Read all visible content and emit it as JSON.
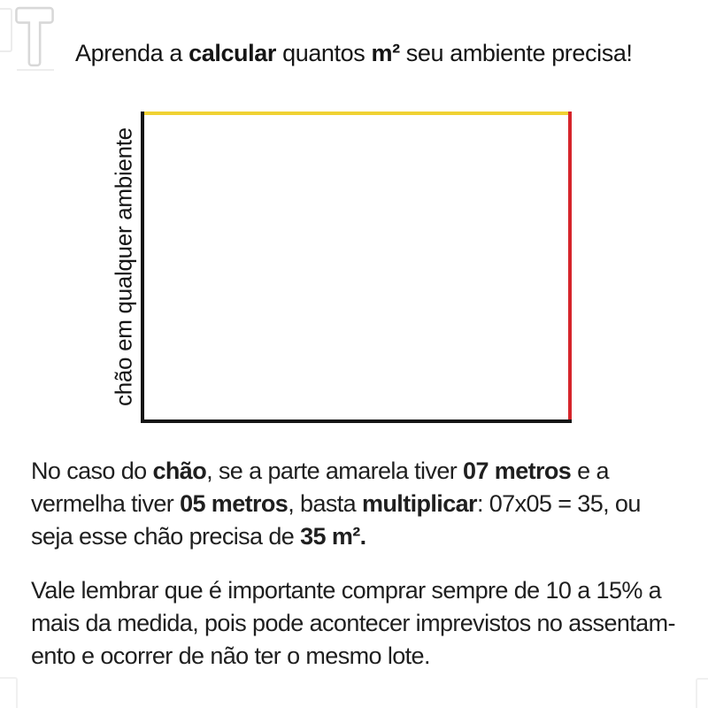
{
  "logo": {
    "letter": "T"
  },
  "header": {
    "title_segments": [
      {
        "text": "Aprenda a "
      },
      {
        "text": "calcular",
        "bold": true
      },
      {
        "text": " quantos "
      },
      {
        "text": "m²",
        "bold": true
      },
      {
        "text": " seu ambiente precisa!"
      }
    ]
  },
  "diagram": {
    "side_label": "chão em qualquer ambiente",
    "edge_colors": {
      "top": "#F0D233",
      "right": "#D6252B",
      "bottom": "#151515",
      "left": "#151515"
    }
  },
  "body": {
    "paragraph1_lines": [
      [
        {
          "text": "No caso do "
        },
        {
          "text": "chão",
          "bold": true
        },
        {
          "text": ", se a parte amarela tiver "
        },
        {
          "text": "07 metros",
          "bold": true
        },
        {
          "text": " e a"
        }
      ],
      [
        {
          "text": "vermelha tiver "
        },
        {
          "text": "05 metros",
          "bold": true
        },
        {
          "text": ", basta "
        },
        {
          "text": "multiplicar",
          "bold": true
        },
        {
          "text": ": 07x05 = 35, ou"
        }
      ],
      [
        {
          "text": "seja esse chão precisa de "
        },
        {
          "text": "35 m².",
          "bold": true
        }
      ]
    ],
    "paragraph2_lines": [
      [
        {
          "text": "Vale lembrar que é importante comprar sempre de 10 a 15% a"
        }
      ],
      [
        {
          "text": "mais da medida, pois pode acontecer imprevistos no assentam-"
        }
      ],
      [
        {
          "text": "ento e ocorrer de não ter o mesmo lote."
        }
      ]
    ]
  }
}
